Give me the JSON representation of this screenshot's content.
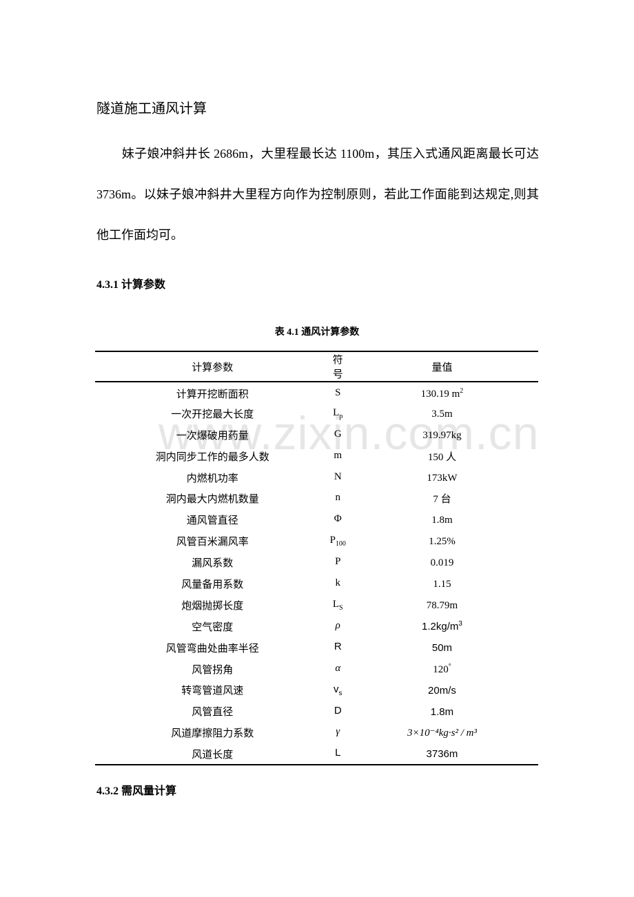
{
  "title": "隧道施工通风计算",
  "paragraph_lines": [
    "　　妹子娘冲斜井长 2686m，大里程最长达 1100m，其压入式通风距离最长可达",
    "3736m。以妹子娘冲斜井大里程方向作为控制原则，若此工作面能到达规定,则其",
    "他工作面均可。"
  ],
  "section_1": "4.3.1  计算参数",
  "table_caption": "表 4.1  通风计算参数",
  "table": {
    "headers": [
      "计算参数",
      "符号",
      "量值"
    ],
    "rows": [
      {
        "name": "计算开挖断面积",
        "sym": "S",
        "sub": "",
        "val": "130.19 m",
        "sup": "2",
        "style": "serif"
      },
      {
        "name": "一次开挖最大长度",
        "sym": "L",
        "sub": "p",
        "val": "3.5m",
        "sup": "",
        "style": "serif"
      },
      {
        "name": "一次爆破用药量",
        "sym": "G",
        "sub": "",
        "val": "319.97kg",
        "sup": "",
        "style": "serif"
      },
      {
        "name": "洞内同步工作的最多人数",
        "sym": "m",
        "sub": "",
        "val": "150 人",
        "sup": "",
        "style": "serif"
      },
      {
        "name": "内燃机功率",
        "sym": "N",
        "sub": "",
        "val": "173kW",
        "sup": "",
        "style": "serif"
      },
      {
        "name": "洞内最大内燃机数量",
        "sym": "n",
        "sub": "",
        "val": "7 台",
        "sup": "",
        "style": "serif"
      },
      {
        "name": "通风管直径",
        "sym": "Φ",
        "sub": "",
        "val": "1.8m",
        "sup": "",
        "style": "serif"
      },
      {
        "name": "风管百米漏风率",
        "sym": "P",
        "sub": "100",
        "val": "1.25%",
        "sup": "",
        "style": "serif"
      },
      {
        "name": "漏风系数",
        "sym": "P",
        "sub": "",
        "val": "0.019",
        "sup": "",
        "style": "serif"
      },
      {
        "name": "风量备用系数",
        "sym": "k",
        "sub": "",
        "val": "1.15",
        "sup": "",
        "style": "serif"
      },
      {
        "name": "炮烟抛掷长度",
        "sym": "L",
        "sub": "S",
        "val": "78.79m",
        "sup": "",
        "style": "serif"
      },
      {
        "name": "空气密度",
        "sym": "ρ",
        "sub": "",
        "val": "1.2kg/m",
        "sup": "3",
        "style": "sans-val",
        "symstyle": "ital"
      },
      {
        "name": "风管弯曲处曲率半径",
        "sym": "R",
        "sub": "",
        "val": "50m",
        "sup": "",
        "style": "sans"
      },
      {
        "name": "风管拐角",
        "sym": "α",
        "sub": "",
        "val": "120",
        "sup": "°",
        "style": "serif",
        "symstyle": "ital"
      },
      {
        "name": "转弯管道风速",
        "sym": "v",
        "sub": "s",
        "val": "20m/s",
        "sup": "",
        "style": "sans"
      },
      {
        "name": "风管直径",
        "sym": "D",
        "sub": "",
        "val": "1.8m",
        "sup": "",
        "style": "sans"
      },
      {
        "name": "风道摩擦阻力系数",
        "sym": "γ",
        "sub": "",
        "val": "3×10⁻⁴kg·s² / m³",
        "sup": "",
        "style": "formula",
        "symstyle": "ital"
      },
      {
        "name": "风道长度",
        "sym": "L",
        "sub": "",
        "val": "3736m",
        "sup": "",
        "style": "sans"
      }
    ]
  },
  "section_2": "4.3.2  需风量计算",
  "watermark": "www.zixin.com.cn"
}
